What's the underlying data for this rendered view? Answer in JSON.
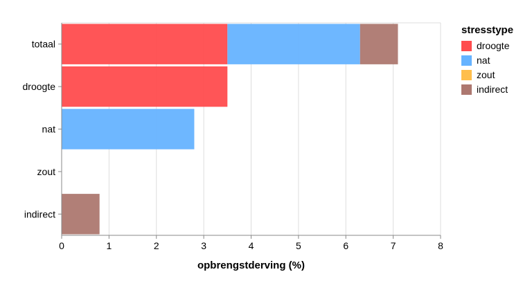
{
  "chart_data": {
    "type": "bar",
    "orientation": "horizontal",
    "stacked": true,
    "categories": [
      "totaal",
      "droogte",
      "nat",
      "zout",
      "indirect"
    ],
    "series": [
      {
        "name": "droogte",
        "color": "#ff4c4e",
        "values": [
          3.5,
          3.5,
          0,
          0,
          0
        ]
      },
      {
        "name": "nat",
        "color": "#66b3ff",
        "values": [
          2.8,
          0,
          2.8,
          0,
          0
        ]
      },
      {
        "name": "zout",
        "color": "#ffbe4c",
        "values": [
          0,
          0,
          0,
          0,
          0
        ]
      },
      {
        "name": "indirect",
        "color": "#ad7870",
        "values": [
          0.8,
          0,
          0,
          0,
          0.8
        ]
      }
    ],
    "xlabel": "opbrengstderving (%)",
    "xlim": [
      0,
      8
    ],
    "xticks": [
      "0",
      "1",
      "2",
      "3",
      "4",
      "5",
      "6",
      "7",
      "8"
    ],
    "grid": true,
    "legend": {
      "title": "stresstype",
      "placement": "right"
    }
  }
}
